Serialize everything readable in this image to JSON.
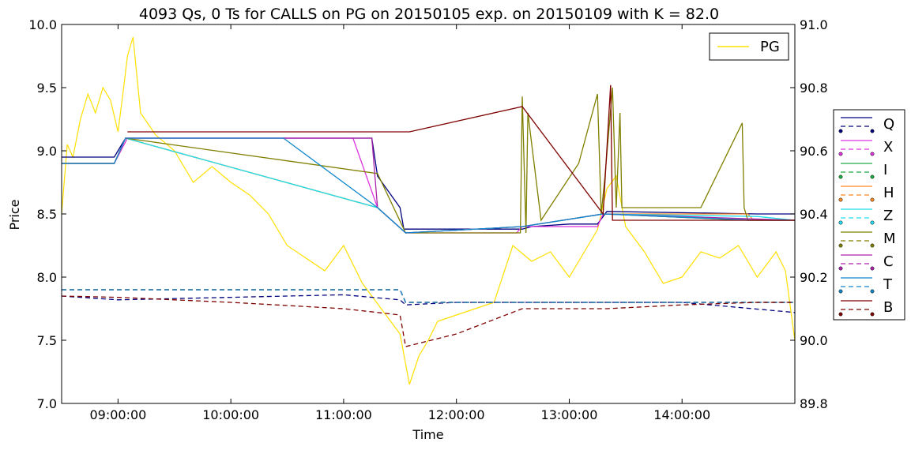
{
  "chart_data": {
    "type": "line",
    "title": "4093 Qs, 0 Ts for CALLS on PG on 20150105 exp. on 20150109 with K = 82.0",
    "xlabel": "Time",
    "ylabel": "Price",
    "xlim": [
      "08:30:00",
      "15:00:00"
    ],
    "ylim": [
      7.0,
      10.0
    ],
    "y2lim": [
      89.8,
      91.0
    ],
    "x_ticks": [
      "09:00:00",
      "10:00:00",
      "11:00:00",
      "12:00:00",
      "13:00:00",
      "14:00:00"
    ],
    "y_ticks": [
      "7.0",
      "7.5",
      "8.0",
      "8.5",
      "9.0",
      "9.5",
      "10.0"
    ],
    "y2_ticks": [
      "89.8",
      "90.0",
      "90.2",
      "90.4",
      "90.6",
      "90.8",
      "91.0"
    ],
    "grid": false,
    "underlying_legend": {
      "placement": "top-right",
      "entries": [
        {
          "name": "PG",
          "color": "#FFE000"
        }
      ]
    },
    "exchange_legend": {
      "placement": "right-outside",
      "entries": [
        {
          "name": "Q",
          "color": "#00007F"
        },
        {
          "name": "X",
          "color": "#DD33DD"
        },
        {
          "name": "I",
          "color": "#22AA44"
        },
        {
          "name": "H",
          "color": "#FF8822"
        },
        {
          "name": "Z",
          "color": "#22DDEE"
        },
        {
          "name": "M",
          "color": "#7F7F00"
        },
        {
          "name": "C",
          "color": "#AA22AA"
        },
        {
          "name": "T",
          "color": "#1188CC"
        },
        {
          "name": "B",
          "color": "#7F0000"
        }
      ]
    },
    "series": [
      {
        "name": "PG",
        "axis": "right",
        "color": "#FFE000",
        "x": [
          "08:30:00",
          "08:33:00",
          "08:36:00",
          "08:40:00",
          "08:44:00",
          "08:48:00",
          "08:52:00",
          "08:56:00",
          "09:00:00",
          "09:03:00",
          "09:05:00",
          "09:08:00",
          "09:12:00",
          "09:20:00",
          "09:30:00",
          "09:40:00",
          "09:50:00",
          "10:00:00",
          "10:10:00",
          "10:20:00",
          "10:30:00",
          "10:40:00",
          "10:50:00",
          "11:00:00",
          "11:10:00",
          "11:20:00",
          "11:30:00",
          "11:35:00",
          "11:40:00",
          "11:45:00",
          "11:50:00",
          "12:00:00",
          "12:10:00",
          "12:20:00",
          "12:30:00",
          "12:40:00",
          "12:50:00",
          "13:00:00",
          "13:10:00",
          "13:15:00",
          "13:20:00",
          "13:25:00",
          "13:30:00",
          "13:40:00",
          "13:50:00",
          "14:00:00",
          "14:10:00",
          "14:20:00",
          "14:30:00",
          "14:40:00",
          "14:50:00",
          "14:55:00",
          "15:00:00"
        ],
        "values": [
          90.4,
          90.62,
          90.58,
          90.7,
          90.78,
          90.72,
          90.8,
          90.76,
          90.66,
          90.8,
          90.9,
          90.96,
          90.72,
          90.65,
          90.6,
          90.5,
          90.55,
          90.5,
          90.46,
          90.4,
          90.3,
          90.26,
          90.22,
          90.3,
          90.18,
          90.1,
          90.02,
          89.86,
          89.95,
          90.0,
          90.06,
          90.08,
          90.1,
          90.12,
          90.3,
          90.25,
          90.28,
          90.2,
          90.3,
          90.35,
          90.48,
          90.52,
          90.36,
          90.28,
          90.18,
          90.2,
          90.28,
          90.26,
          90.3,
          90.2,
          90.28,
          90.22,
          90.0
        ]
      },
      {
        "name": "Q bid",
        "axis": "left",
        "color": "#00007F",
        "dash": false,
        "x": [
          "08:30:00",
          "08:58:00",
          "09:02:00",
          "09:04:00",
          "10:00:00",
          "11:15:00",
          "11:18:00",
          "11:30:00",
          "11:32:00",
          "12:00:00",
          "12:35:00",
          "12:40:00",
          "13:00:00",
          "13:15:00",
          "13:20:00",
          "14:40:00",
          "15:00:00"
        ],
        "values": [
          8.95,
          8.95,
          9.05,
          9.1,
          9.1,
          9.1,
          8.8,
          8.55,
          8.38,
          8.38,
          8.38,
          8.4,
          8.42,
          8.42,
          8.52,
          8.5,
          8.5
        ]
      },
      {
        "name": "Q ask",
        "axis": "left",
        "color": "#00007F",
        "dash": true,
        "x": [
          "08:30:00",
          "09:00:00",
          "10:00:00",
          "11:00:00",
          "11:30:00",
          "11:33:00",
          "12:00:00",
          "13:00:00",
          "14:00:00",
          "14:30:00",
          "15:00:00"
        ],
        "values": [
          7.85,
          7.82,
          7.84,
          7.86,
          7.82,
          7.78,
          7.8,
          7.8,
          7.8,
          7.76,
          7.72
        ]
      },
      {
        "name": "X bid",
        "axis": "left",
        "color": "#DD33DD",
        "dash": false,
        "x": [
          "08:30:00",
          "08:58:00",
          "09:05:00",
          "11:05:00",
          "11:18:00",
          "11:33:00",
          "12:32:00",
          "12:35:00",
          "13:15:00",
          "13:18:00",
          "14:35:00",
          "15:00:00"
        ],
        "values": [
          8.9,
          8.9,
          9.1,
          9.1,
          8.55,
          8.35,
          8.35,
          8.4,
          8.4,
          8.5,
          8.45,
          8.45
        ]
      },
      {
        "name": "X ask",
        "axis": "left",
        "color": "#DD33DD",
        "dash": true,
        "x": [
          "08:30:00",
          "11:30:00",
          "11:33:00",
          "15:00:00"
        ],
        "values": [
          7.9,
          7.9,
          7.8,
          7.8
        ]
      },
      {
        "name": "I bid",
        "axis": "left",
        "color": "#22AA44",
        "dash": false,
        "x": [
          "08:30:00",
          "08:58:00",
          "09:04:00",
          "11:18:00",
          "11:33:00",
          "12:35:00",
          "13:18:00",
          "14:35:00",
          "15:00:00"
        ],
        "values": [
          8.9,
          8.9,
          9.1,
          8.55,
          8.35,
          8.4,
          8.5,
          8.45,
          8.45
        ]
      },
      {
        "name": "I ask",
        "axis": "left",
        "color": "#22AA44",
        "dash": true,
        "x": [
          "08:30:00",
          "11:30:00",
          "11:33:00",
          "15:00:00"
        ],
        "values": [
          7.9,
          7.9,
          7.8,
          7.8
        ]
      },
      {
        "name": "H bid",
        "axis": "left",
        "color": "#FF8822",
        "dash": false,
        "x": [
          "08:30:00",
          "08:58:00",
          "09:04:00",
          "11:18:00",
          "11:33:00",
          "12:35:00",
          "13:18:00",
          "14:35:00",
          "14:38:00",
          "15:00:00"
        ],
        "values": [
          8.9,
          8.9,
          9.1,
          8.55,
          8.35,
          8.4,
          8.5,
          8.5,
          8.45,
          8.45
        ]
      },
      {
        "name": "H ask",
        "axis": "left",
        "color": "#FF8822",
        "dash": true,
        "x": [
          "08:30:00",
          "11:30:00",
          "11:33:00",
          "15:00:00"
        ],
        "values": [
          7.9,
          7.9,
          7.8,
          7.8
        ]
      },
      {
        "name": "Z bid",
        "axis": "left",
        "color": "#22DDEE",
        "dash": false,
        "x": [
          "08:30:00",
          "08:58:00",
          "09:04:00",
          "11:18:00",
          "11:33:00",
          "12:35:00",
          "13:18:00",
          "14:40:00",
          "15:00:00"
        ],
        "values": [
          8.9,
          8.9,
          9.1,
          8.55,
          8.35,
          8.4,
          8.5,
          8.48,
          8.45
        ]
      },
      {
        "name": "Z ask",
        "axis": "left",
        "color": "#22DDEE",
        "dash": true,
        "x": [
          "08:30:00",
          "11:30:00",
          "11:33:00",
          "15:00:00"
        ],
        "values": [
          7.9,
          7.9,
          7.8,
          7.8
        ]
      },
      {
        "name": "M bid",
        "axis": "left",
        "color": "#7F7F00",
        "dash": false,
        "x": [
          "08:30:00",
          "08:58:00",
          "09:04:00",
          "11:18:00",
          "11:33:00",
          "12:34:00",
          "12:35:00",
          "12:37:00",
          "12:38:00",
          "12:45:00",
          "13:05:00",
          "13:15:00",
          "13:17:00",
          "13:19:00",
          "13:23:00",
          "13:25:00",
          "13:27:00",
          "13:28:00",
          "14:10:00",
          "14:32:00",
          "14:33:00",
          "14:35:00",
          "15:00:00"
        ],
        "values": [
          8.9,
          8.9,
          9.1,
          8.82,
          8.35,
          8.35,
          9.43,
          8.35,
          9.3,
          8.45,
          8.9,
          9.45,
          8.5,
          8.8,
          9.5,
          8.55,
          9.3,
          8.55,
          8.55,
          9.22,
          8.55,
          8.45,
          8.45
        ]
      },
      {
        "name": "M ask",
        "axis": "left",
        "color": "#7F7F00",
        "dash": true,
        "x": [
          "08:30:00",
          "11:30:00",
          "11:33:00",
          "15:00:00"
        ],
        "values": [
          7.9,
          7.9,
          7.8,
          7.8
        ]
      },
      {
        "name": "C bid",
        "axis": "left",
        "color": "#AA22AA",
        "dash": false,
        "x": [
          "08:30:00",
          "08:58:00",
          "09:04:00",
          "11:15:00",
          "11:18:00",
          "11:33:00",
          "12:35:00",
          "13:18:00",
          "15:00:00"
        ],
        "values": [
          8.9,
          8.9,
          9.1,
          9.1,
          8.55,
          8.35,
          8.4,
          8.5,
          8.45
        ]
      },
      {
        "name": "C ask",
        "axis": "left",
        "color": "#AA22AA",
        "dash": true,
        "x": [
          "08:30:00",
          "11:30:00",
          "11:33:00",
          "15:00:00"
        ],
        "values": [
          7.9,
          7.9,
          7.8,
          7.8
        ]
      },
      {
        "name": "T bid",
        "axis": "left",
        "color": "#1188CC",
        "dash": false,
        "x": [
          "08:30:00",
          "08:58:00",
          "09:04:00",
          "10:28:00",
          "11:18:00",
          "11:33:00",
          "12:35:00",
          "13:18:00",
          "14:40:00",
          "15:00:00"
        ],
        "values": [
          8.9,
          8.9,
          9.1,
          9.1,
          8.55,
          8.35,
          8.4,
          8.5,
          8.45,
          8.45
        ]
      },
      {
        "name": "T ask",
        "axis": "left",
        "color": "#1188CC",
        "dash": true,
        "x": [
          "08:30:00",
          "11:30:00",
          "11:33:00",
          "15:00:00"
        ],
        "values": [
          7.9,
          7.9,
          7.8,
          7.8
        ]
      },
      {
        "name": "B bid",
        "axis": "left",
        "color": "#7F0000",
        "dash": false,
        "x": [
          "09:05:00",
          "11:35:00",
          "12:35:00",
          "13:18:00",
          "13:22:00",
          "13:23:00",
          "13:24:00",
          "15:00:00"
        ],
        "values": [
          9.15,
          9.15,
          9.35,
          8.5,
          9.52,
          8.45,
          8.45,
          8.45
        ]
      },
      {
        "name": "B ask",
        "axis": "left",
        "color": "#7F0000",
        "dash": true,
        "x": [
          "08:30:00",
          "09:00:00",
          "10:00:00",
          "11:00:00",
          "11:30:00",
          "11:33:00",
          "12:00:00",
          "12:35:00",
          "13:00:00",
          "13:20:00",
          "14:00:00",
          "14:40:00",
          "15:00:00"
        ],
        "values": [
          7.85,
          7.84,
          7.8,
          7.75,
          7.7,
          7.45,
          7.55,
          7.75,
          7.75,
          7.75,
          7.78,
          7.8,
          7.8
        ]
      }
    ]
  }
}
